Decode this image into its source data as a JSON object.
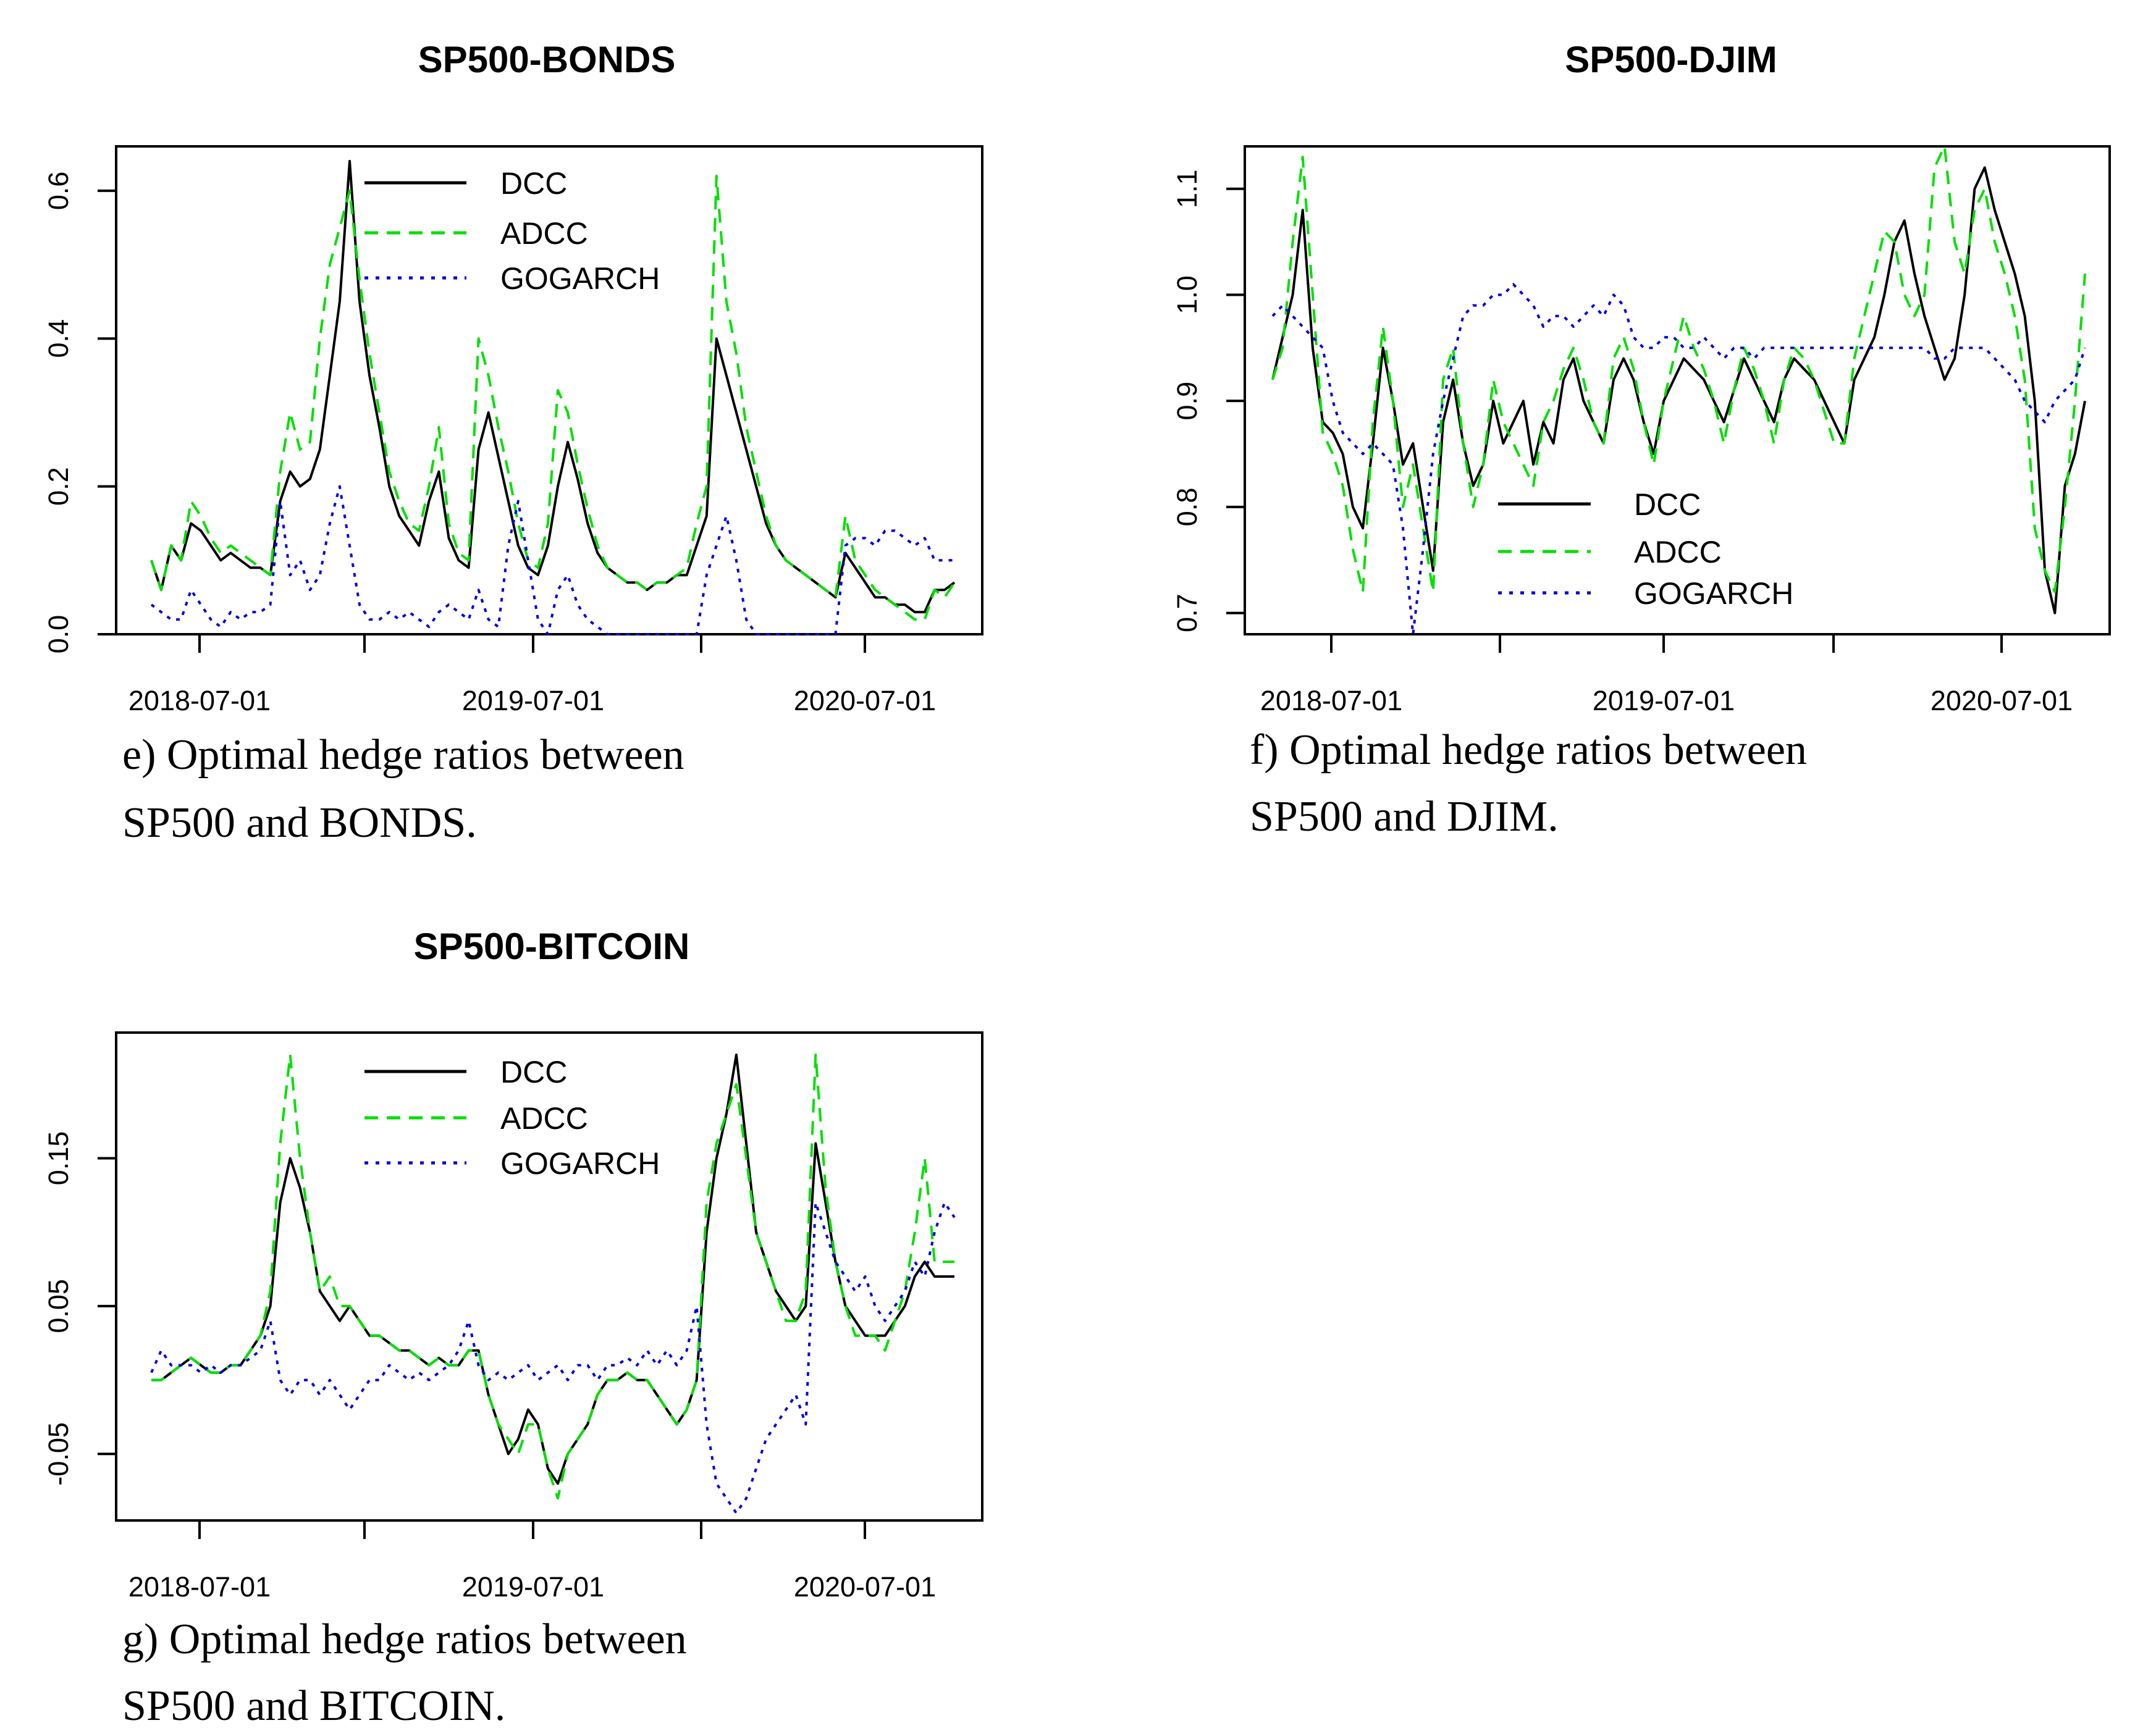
{
  "chart_data": [
    {
      "id": "bonds",
      "type": "line",
      "title": "SP500-BONDS",
      "caption_line1": "e) Optimal hedge ratios between",
      "caption_line2": "SP500 and BONDS.",
      "xlabel": "",
      "ylabel": "",
      "x_tick_labels": [
        "2018-07-01",
        "2019-07-01",
        "2020-07-01"
      ],
      "y_ticks": [
        0.0,
        0.2,
        0.4,
        0.6
      ],
      "y_tick_labels": [
        "0.0",
        "0.2",
        "0.4",
        "0.6"
      ],
      "ylim": [
        0.0,
        0.66
      ],
      "legend_position": "top-center",
      "series": [
        {
          "name": "DCC",
          "color": "#000000",
          "dash": "solid",
          "values": [
            0.1,
            0.06,
            0.12,
            0.1,
            0.15,
            0.14,
            0.12,
            0.1,
            0.11,
            0.1,
            0.09,
            0.09,
            0.08,
            0.18,
            0.22,
            0.2,
            0.21,
            0.25,
            0.35,
            0.45,
            0.64,
            0.45,
            0.35,
            0.28,
            0.2,
            0.16,
            0.14,
            0.12,
            0.18,
            0.22,
            0.13,
            0.1,
            0.09,
            0.25,
            0.3,
            0.24,
            0.18,
            0.12,
            0.09,
            0.08,
            0.12,
            0.2,
            0.26,
            0.21,
            0.15,
            0.11,
            0.09,
            0.08,
            0.07,
            0.07,
            0.06,
            0.07,
            0.07,
            0.08,
            0.08,
            0.12,
            0.16,
            0.4,
            0.35,
            0.3,
            0.25,
            0.2,
            0.15,
            0.12,
            0.1,
            0.09,
            0.08,
            0.07,
            0.06,
            0.05,
            0.11,
            0.09,
            0.07,
            0.05,
            0.05,
            0.04,
            0.04,
            0.03,
            0.03,
            0.06,
            0.06,
            0.07
          ]
        },
        {
          "name": "ADCC",
          "color": "#00e000",
          "dash": "dashed",
          "values": [
            0.1,
            0.06,
            0.12,
            0.1,
            0.18,
            0.16,
            0.13,
            0.11,
            0.12,
            0.11,
            0.1,
            0.09,
            0.08,
            0.22,
            0.3,
            0.25,
            0.26,
            0.4,
            0.5,
            0.55,
            0.6,
            0.48,
            0.38,
            0.3,
            0.22,
            0.18,
            0.15,
            0.14,
            0.2,
            0.28,
            0.15,
            0.11,
            0.1,
            0.4,
            0.35,
            0.28,
            0.22,
            0.15,
            0.1,
            0.09,
            0.15,
            0.33,
            0.3,
            0.23,
            0.17,
            0.12,
            0.09,
            0.08,
            0.07,
            0.07,
            0.06,
            0.07,
            0.07,
            0.08,
            0.09,
            0.15,
            0.2,
            0.62,
            0.45,
            0.38,
            0.28,
            0.22,
            0.16,
            0.12,
            0.1,
            0.09,
            0.08,
            0.07,
            0.06,
            0.05,
            0.16,
            0.1,
            0.08,
            0.06,
            0.05,
            0.04,
            0.03,
            0.02,
            0.02,
            0.06,
            0.05,
            0.07
          ]
        },
        {
          "name": "GOGARCH",
          "color": "#0000e0",
          "dash": "dotted",
          "values": [
            0.04,
            0.03,
            0.02,
            0.02,
            0.06,
            0.04,
            0.02,
            0.01,
            0.03,
            0.02,
            0.03,
            0.03,
            0.04,
            0.18,
            0.08,
            0.1,
            0.06,
            0.08,
            0.15,
            0.2,
            0.12,
            0.04,
            0.02,
            0.02,
            0.03,
            0.02,
            0.03,
            0.02,
            0.01,
            0.03,
            0.04,
            0.03,
            0.02,
            0.06,
            0.02,
            0.01,
            0.12,
            0.18,
            0.1,
            0.02,
            0.0,
            0.06,
            0.08,
            0.04,
            0.02,
            0.01,
            0.0,
            0.0,
            0.0,
            0.0,
            0.0,
            0.0,
            0.0,
            0.0,
            0.0,
            0.0,
            0.08,
            0.12,
            0.16,
            0.1,
            0.02,
            0.0,
            0.0,
            0.0,
            0.0,
            0.0,
            0.0,
            0.0,
            0.0,
            0.0,
            0.12,
            0.13,
            0.13,
            0.12,
            0.14,
            0.14,
            0.13,
            0.12,
            0.13,
            0.1,
            0.1,
            0.1
          ]
        }
      ]
    },
    {
      "id": "djim",
      "type": "line",
      "title": "SP500-DJIM",
      "caption_line1": "f) Optimal hedge ratios between",
      "caption_line2": "SP500 and DJIM.",
      "xlabel": "",
      "ylabel": "",
      "x_tick_labels": [
        "2018-07-01",
        "2019-07-01",
        "2020-07-01"
      ],
      "y_ticks": [
        0.7,
        0.8,
        0.9,
        1.0,
        1.1
      ],
      "y_tick_labels": [
        "0.7",
        "0.8",
        "0.9",
        "1.0",
        "1.1"
      ],
      "ylim": [
        0.68,
        1.14
      ],
      "legend_position": "bottom-center",
      "series": [
        {
          "name": "DCC",
          "color": "#000000",
          "dash": "solid",
          "values": [
            0.92,
            0.96,
            1.0,
            1.08,
            0.95,
            0.88,
            0.87,
            0.85,
            0.8,
            0.78,
            0.86,
            0.95,
            0.9,
            0.84,
            0.86,
            0.8,
            0.74,
            0.88,
            0.92,
            0.86,
            0.82,
            0.84,
            0.9,
            0.86,
            0.88,
            0.9,
            0.84,
            0.88,
            0.86,
            0.92,
            0.94,
            0.9,
            0.88,
            0.86,
            0.92,
            0.94,
            0.92,
            0.88,
            0.85,
            0.9,
            0.92,
            0.94,
            0.93,
            0.92,
            0.9,
            0.88,
            0.91,
            0.94,
            0.92,
            0.9,
            0.88,
            0.92,
            0.94,
            0.93,
            0.92,
            0.9,
            0.88,
            0.86,
            0.92,
            0.94,
            0.96,
            1.0,
            1.05,
            1.07,
            1.02,
            0.98,
            0.95,
            0.92,
            0.94,
            1.0,
            1.1,
            1.12,
            1.08,
            1.05,
            1.02,
            0.98,
            0.9,
            0.74,
            0.7,
            0.82,
            0.85,
            0.9
          ]
        },
        {
          "name": "ADCC",
          "color": "#00e000",
          "dash": "dashed",
          "values": [
            0.92,
            0.95,
            1.05,
            1.13,
            1.0,
            0.87,
            0.85,
            0.82,
            0.76,
            0.72,
            0.88,
            0.97,
            0.9,
            0.8,
            0.84,
            0.78,
            0.72,
            0.92,
            0.95,
            0.86,
            0.8,
            0.84,
            0.92,
            0.88,
            0.86,
            0.84,
            0.82,
            0.88,
            0.9,
            0.93,
            0.95,
            0.92,
            0.88,
            0.86,
            0.94,
            0.96,
            0.93,
            0.88,
            0.84,
            0.9,
            0.94,
            0.98,
            0.95,
            0.93,
            0.9,
            0.86,
            0.91,
            0.95,
            0.93,
            0.9,
            0.86,
            0.92,
            0.95,
            0.94,
            0.92,
            0.89,
            0.86,
            0.86,
            0.94,
            0.98,
            1.02,
            1.06,
            1.05,
            1.0,
            0.98,
            1.0,
            1.12,
            1.14,
            1.05,
            1.02,
            1.08,
            1.1,
            1.05,
            1.02,
            0.98,
            0.92,
            0.78,
            0.74,
            0.72,
            0.8,
            0.9,
            1.02
          ]
        },
        {
          "name": "GOGARCH",
          "color": "#0000e0",
          "dash": "dotted",
          "values": [
            0.98,
            0.99,
            0.98,
            0.97,
            0.96,
            0.95,
            0.9,
            0.87,
            0.86,
            0.85,
            0.86,
            0.85,
            0.84,
            0.78,
            0.68,
            0.76,
            0.85,
            0.9,
            0.94,
            0.98,
            0.99,
            0.99,
            1.0,
            1.0,
            1.01,
            1.0,
            0.99,
            0.97,
            0.98,
            0.98,
            0.97,
            0.98,
            0.99,
            0.98,
            1.0,
            0.99,
            0.96,
            0.95,
            0.95,
            0.96,
            0.96,
            0.95,
            0.95,
            0.96,
            0.95,
            0.94,
            0.95,
            0.95,
            0.94,
            0.95,
            0.95,
            0.95,
            0.95,
            0.95,
            0.95,
            0.95,
            0.95,
            0.95,
            0.95,
            0.95,
            0.95,
            0.95,
            0.95,
            0.95,
            0.95,
            0.95,
            0.94,
            0.94,
            0.95,
            0.95,
            0.95,
            0.95,
            0.94,
            0.93,
            0.92,
            0.9,
            0.89,
            0.88,
            0.9,
            0.91,
            0.92,
            0.95
          ]
        }
      ]
    },
    {
      "id": "bitcoin",
      "type": "line",
      "title": "SP500-BITCOIN",
      "caption_line1": "g) Optimal hedge ratios between",
      "caption_line2": "SP500 and BITCOIN.",
      "xlabel": "",
      "ylabel": "",
      "x_tick_labels": [
        "2018-07-01",
        "2019-07-01",
        "2020-07-01"
      ],
      "y_ticks": [
        -0.05,
        0.05,
        0.15
      ],
      "y_tick_labels": [
        "-0.05",
        "0.05",
        "0.15"
      ],
      "ylim": [
        -0.095,
        0.235
      ],
      "legend_position": "top-center",
      "series": [
        {
          "name": "DCC",
          "color": "#000000",
          "dash": "solid",
          "values": [
            0.0,
            0.0,
            0.005,
            0.01,
            0.015,
            0.01,
            0.005,
            0.005,
            0.01,
            0.01,
            0.02,
            0.03,
            0.05,
            0.12,
            0.15,
            0.13,
            0.1,
            0.06,
            0.05,
            0.04,
            0.05,
            0.04,
            0.03,
            0.03,
            0.025,
            0.02,
            0.02,
            0.015,
            0.01,
            0.015,
            0.01,
            0.01,
            0.02,
            0.02,
            -0.01,
            -0.03,
            -0.05,
            -0.04,
            -0.02,
            -0.03,
            -0.06,
            -0.07,
            -0.05,
            -0.04,
            -0.03,
            -0.01,
            0.0,
            0.0,
            0.005,
            0.0,
            0.0,
            -0.01,
            -0.02,
            -0.03,
            -0.02,
            0.0,
            0.1,
            0.15,
            0.18,
            0.22,
            0.16,
            0.1,
            0.08,
            0.06,
            0.05,
            0.04,
            0.05,
            0.16,
            0.12,
            0.08,
            0.05,
            0.04,
            0.03,
            0.03,
            0.03,
            0.04,
            0.05,
            0.07,
            0.08,
            0.07,
            0.07,
            0.07
          ]
        },
        {
          "name": "ADCC",
          "color": "#00e000",
          "dash": "dashed",
          "values": [
            0.0,
            0.0,
            0.005,
            0.01,
            0.015,
            0.01,
            0.005,
            0.005,
            0.01,
            0.01,
            0.02,
            0.03,
            0.06,
            0.16,
            0.22,
            0.15,
            0.1,
            0.06,
            0.07,
            0.05,
            0.05,
            0.04,
            0.03,
            0.03,
            0.025,
            0.02,
            0.02,
            0.015,
            0.01,
            0.015,
            0.01,
            0.01,
            0.02,
            0.02,
            -0.01,
            -0.03,
            -0.04,
            -0.05,
            -0.03,
            -0.03,
            -0.06,
            -0.08,
            -0.05,
            -0.04,
            -0.03,
            -0.01,
            0.0,
            0.0,
            0.005,
            0.0,
            0.0,
            -0.01,
            -0.02,
            -0.03,
            -0.02,
            0.0,
            0.12,
            0.16,
            0.18,
            0.2,
            0.15,
            0.1,
            0.08,
            0.06,
            0.04,
            0.04,
            0.06,
            0.22,
            0.13,
            0.08,
            0.05,
            0.03,
            0.03,
            0.03,
            0.02,
            0.04,
            0.06,
            0.1,
            0.15,
            0.08,
            0.08,
            0.08
          ]
        },
        {
          "name": "GOGARCH",
          "color": "#0000e0",
          "dash": "dotted",
          "values": [
            0.005,
            0.02,
            0.01,
            0.01,
            0.01,
            0.005,
            0.01,
            0.005,
            0.01,
            0.01,
            0.015,
            0.02,
            0.04,
            0.0,
            -0.01,
            0.0,
            0.0,
            -0.01,
            0.0,
            -0.01,
            -0.02,
            -0.01,
            0.0,
            0.0,
            0.01,
            0.005,
            0.0,
            0.005,
            0.0,
            0.005,
            0.01,
            0.02,
            0.04,
            0.01,
            0.0,
            0.005,
            0.0,
            0.005,
            0.01,
            0.0,
            0.005,
            0.01,
            0.0,
            0.01,
            0.01,
            0.0,
            0.01,
            0.01,
            0.015,
            0.01,
            0.02,
            0.01,
            0.02,
            0.01,
            0.02,
            0.05,
            -0.03,
            -0.07,
            -0.08,
            -0.09,
            -0.08,
            -0.06,
            -0.04,
            -0.03,
            -0.02,
            -0.01,
            -0.03,
            0.12,
            0.1,
            0.08,
            0.07,
            0.06,
            0.07,
            0.05,
            0.04,
            0.05,
            0.06,
            0.08,
            0.07,
            0.1,
            0.12,
            0.11
          ]
        }
      ]
    }
  ]
}
